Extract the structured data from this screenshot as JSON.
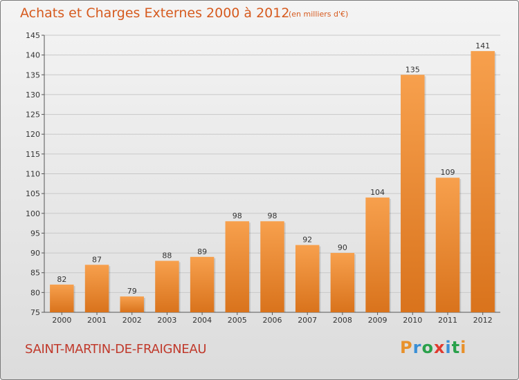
{
  "title": "Achats et Charges Externes 2000 à 2012",
  "subtitle": "(en milliers d'€)",
  "commune": "SAINT-MARTIN-DE-FRAIGNEAU",
  "logo": {
    "letters": [
      "P",
      "r",
      "o",
      "x",
      "i",
      "t",
      "i"
    ],
    "colors": [
      "#e8912b",
      "#3a8fd6",
      "#2aa14b",
      "#e03a2f",
      "#3a8fd6",
      "#2aa14b",
      "#e8912b"
    ]
  },
  "chart_data": {
    "type": "bar",
    "categories": [
      "2000",
      "2001",
      "2002",
      "2003",
      "2004",
      "2005",
      "2006",
      "2007",
      "2008",
      "2009",
      "2010",
      "2011",
      "2012"
    ],
    "values": [
      82,
      87,
      79,
      88,
      89,
      98,
      98,
      92,
      90,
      104,
      135,
      109,
      141
    ],
    "value_labels": [
      "82",
      "87",
      "79",
      "88",
      "89",
      "98",
      "98",
      "92",
      "90",
      "104",
      "135",
      "109",
      "141"
    ],
    "ylim": [
      75,
      145
    ],
    "yticks": [
      "75",
      "80",
      "85",
      "90",
      "95",
      "100",
      "105",
      "110",
      "115",
      "120",
      "125",
      "130",
      "135",
      "140",
      "145"
    ],
    "grid": true,
    "colors": {
      "bar_top": "#f7a04d",
      "bar_bottom": "#d9731c",
      "grid": "#c8c8c8",
      "axis": "#555555"
    }
  }
}
